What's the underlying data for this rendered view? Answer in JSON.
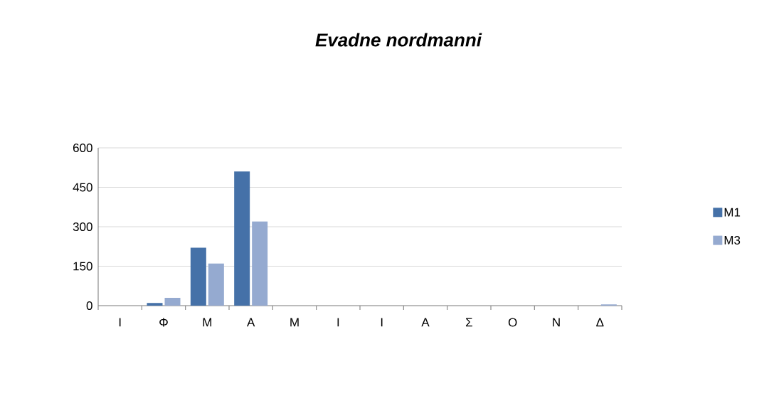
{
  "chart_data": {
    "type": "bar",
    "title": "Evadne nordmanni",
    "categories": [
      "Ι",
      "Φ",
      "Μ",
      "Α",
      "Μ",
      "Ι",
      "Ι",
      "Α",
      "Σ",
      "Ο",
      "Ν",
      "Δ"
    ],
    "series": [
      {
        "name": "M1",
        "color": "#4571a8",
        "values": [
          0,
          10,
          220,
          510,
          0,
          0,
          0,
          0,
          0,
          0,
          0,
          0
        ]
      },
      {
        "name": "M3",
        "color": "#95aad0",
        "values": [
          0,
          30,
          160,
          320,
          0,
          0,
          0,
          0,
          0,
          0,
          0,
          5
        ]
      }
    ],
    "ylim": [
      0,
      600
    ],
    "yticks": [
      0,
      150,
      300,
      450,
      600
    ],
    "grid": "y",
    "legend": "right"
  }
}
